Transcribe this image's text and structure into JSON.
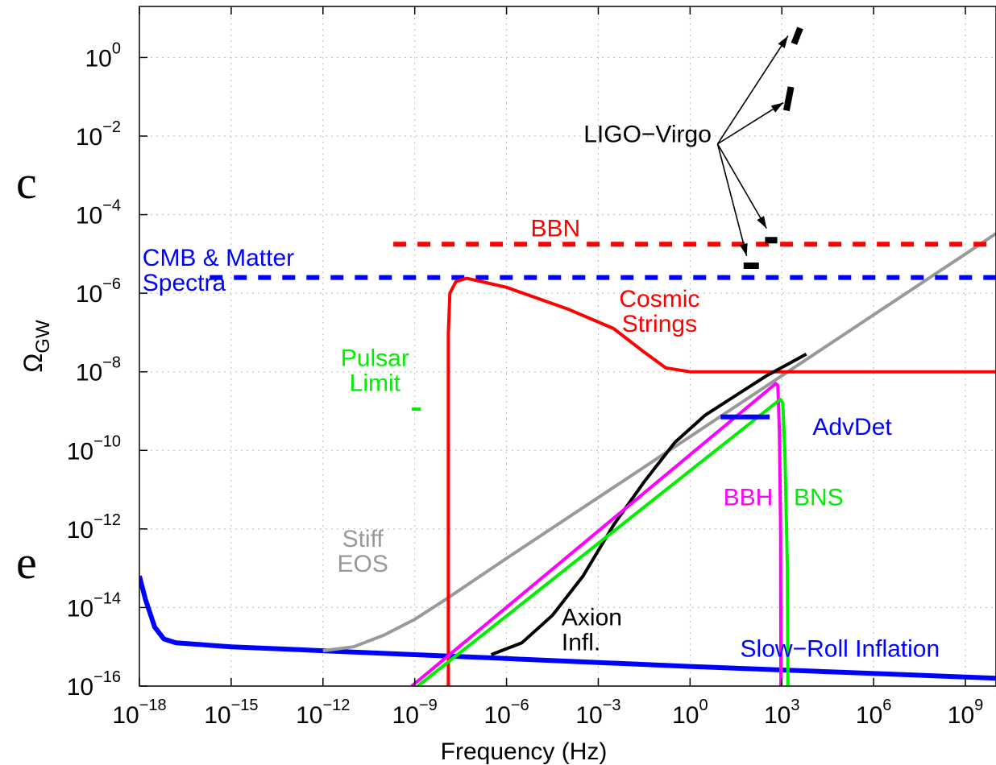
{
  "chart_data": {
    "type": "line",
    "xlabel": "Frequency (Hz)",
    "ylabel_main": "Ω",
    "ylabel_sub": "GW",
    "x_scale": "log",
    "y_scale": "log",
    "xlim_log10": [
      -18,
      10
    ],
    "ylim_log10": [
      -16,
      1.3
    ],
    "grid": "dotted",
    "x_tick_exponents": [
      -18,
      -15,
      -12,
      -9,
      -6,
      -3,
      0,
      3,
      6,
      9
    ],
    "y_tick_exponents": [
      -16,
      -14,
      -12,
      -10,
      -8,
      -6,
      -4,
      -2,
      0
    ],
    "tick_base": "10",
    "series": [
      {
        "key": "slow_roll",
        "color": "#0000ff",
        "width": 6,
        "dash": "",
        "points_log10": [
          [
            -18,
            -13.2
          ],
          [
            -17.8,
            -13.8
          ],
          [
            -17.5,
            -14.5
          ],
          [
            -17.2,
            -14.8
          ],
          [
            -16.8,
            -14.9
          ],
          [
            -15,
            -15.0
          ],
          [
            -12,
            -15.1
          ],
          [
            -9,
            -15.2
          ],
          [
            -6,
            -15.3
          ],
          [
            0,
            -15.5
          ],
          [
            5,
            -15.65
          ],
          [
            10,
            -15.8
          ]
        ]
      },
      {
        "key": "stiff_eos",
        "color": "#999999",
        "width": 4,
        "dash": "",
        "points_log10": [
          [
            -12,
            -15.1
          ],
          [
            -11,
            -15.0
          ],
          [
            -10,
            -14.7
          ],
          [
            -9,
            -14.3
          ],
          [
            -8,
            -13.8
          ],
          [
            -6,
            -12.75
          ],
          [
            -3,
            -11.2
          ],
          [
            0,
            -9.65
          ],
          [
            3,
            -8.1
          ],
          [
            6,
            -6.55
          ],
          [
            9,
            -5.0
          ],
          [
            10,
            -4.48
          ]
        ]
      },
      {
        "key": "bbn",
        "color": "#ff0000",
        "width": 6,
        "dash": "16,14",
        "points_log10": [
          [
            -9.7,
            -4.75
          ],
          [
            10,
            -4.75
          ]
        ]
      },
      {
        "key": "cmb",
        "color": "#0000ff",
        "width": 6,
        "dash": "16,14",
        "points_log10": [
          [
            -15.7,
            -5.6
          ],
          [
            10,
            -5.6
          ]
        ]
      },
      {
        "key": "cosmic_strings",
        "color": "#ff0000",
        "width": 4,
        "dash": "",
        "points_log10": [
          [
            -7.9,
            -16
          ],
          [
            -7.9,
            -7.0
          ],
          [
            -7.85,
            -6.0
          ],
          [
            -7.65,
            -5.7
          ],
          [
            -7.3,
            -5.62
          ],
          [
            -6,
            -5.85
          ],
          [
            -4,
            -6.4
          ],
          [
            -2.5,
            -6.9
          ],
          [
            -1.5,
            -7.5
          ],
          [
            -0.8,
            -7.9
          ],
          [
            0,
            -8.0
          ],
          [
            3,
            -8.0
          ],
          [
            10,
            -8.0
          ]
        ]
      },
      {
        "key": "axion",
        "color": "#000000",
        "width": 4,
        "dash": "",
        "points_log10": [
          [
            -6.5,
            -15.2
          ],
          [
            -5.5,
            -14.9
          ],
          [
            -4.5,
            -14.2
          ],
          [
            -3.5,
            -13.2
          ],
          [
            -2.5,
            -11.9
          ],
          [
            -1.5,
            -10.8
          ],
          [
            -0.5,
            -9.8
          ],
          [
            0.5,
            -9.1
          ],
          [
            1.5,
            -8.6
          ],
          [
            2.5,
            -8.1
          ],
          [
            3.8,
            -7.55
          ]
        ]
      },
      {
        "key": "bbh",
        "color": "#ff00ff",
        "width": 4,
        "dash": "",
        "points_log10": [
          [
            -9.1,
            -16
          ],
          [
            2.8,
            -8.3
          ],
          [
            2.87,
            -8.35
          ],
          [
            2.92,
            -9.5
          ],
          [
            2.96,
            -12
          ],
          [
            2.97,
            -16
          ]
        ]
      },
      {
        "key": "bns",
        "color": "#00ee00",
        "width": 4,
        "dash": "",
        "points_log10": [
          [
            -8.9,
            -16
          ],
          [
            2.95,
            -8.7
          ],
          [
            3.03,
            -8.8
          ],
          [
            3.1,
            -10
          ],
          [
            3.18,
            -13
          ],
          [
            3.2,
            -16
          ]
        ]
      },
      {
        "key": "advdet",
        "color": "#0000ff",
        "width": 6,
        "dash": "",
        "points_log10": [
          [
            1.0,
            -9.15
          ],
          [
            2.6,
            -9.15
          ]
        ]
      },
      {
        "key": "pulsar",
        "color": "#00ee00",
        "width": 4,
        "dash": "",
        "points_log10": [
          [
            -9.1,
            -8.95
          ],
          [
            -8.8,
            -8.95
          ]
        ]
      },
      {
        "key": "ligo1",
        "color": "#000000",
        "width": 8,
        "dash": "",
        "points_log10": [
          [
            3.4,
            0.35
          ],
          [
            3.6,
            0.75
          ]
        ]
      },
      {
        "key": "ligo2",
        "color": "#000000",
        "width": 8,
        "dash": "",
        "points_log10": [
          [
            3.15,
            -1.35
          ],
          [
            3.3,
            -0.75
          ]
        ]
      },
      {
        "key": "ligo3",
        "color": "#000000",
        "width": 8,
        "dash": "",
        "points_log10": [
          [
            2.45,
            -4.65
          ],
          [
            2.85,
            -4.65
          ]
        ]
      },
      {
        "key": "ligo4",
        "color": "#000000",
        "width": 8,
        "dash": "",
        "points_log10": [
          [
            1.75,
            -5.3
          ],
          [
            2.25,
            -5.3
          ]
        ]
      }
    ],
    "annotations": [
      {
        "lines": [
          "LIGO−Virgo"
        ],
        "color": "#000000",
        "at_log10": [
          0.7,
          -2.15
        ],
        "anchor": "end"
      },
      {
        "lines": [
          "BBN"
        ],
        "color": "#ff0000",
        "at_log10": [
          -4.4,
          -4.55
        ],
        "anchor": "middle"
      },
      {
        "lines": [
          "CMB & Matter",
          "Spectra"
        ],
        "color": "#0000ff",
        "at_log10": [
          -17.9,
          -5.3
        ],
        "anchor": "start"
      },
      {
        "lines": [
          "Cosmic",
          "Strings"
        ],
        "color": "#ff0000",
        "at_log10": [
          -1.0,
          -6.35
        ],
        "anchor": "middle"
      },
      {
        "lines": [
          "Pulsar",
          "Limit"
        ],
        "color": "#00ee00",
        "at_log10": [
          -10.3,
          -7.85
        ],
        "anchor": "middle"
      },
      {
        "lines": [
          "AdvDet"
        ],
        "color": "#0000ff",
        "at_log10": [
          5.3,
          -9.6
        ],
        "anchor": "middle"
      },
      {
        "lines": [
          "BBH"
        ],
        "color": "#ff00ff",
        "at_log10": [
          1.9,
          -11.4
        ],
        "anchor": "middle"
      },
      {
        "lines": [
          "BNS"
        ],
        "color": "#00ee00",
        "at_log10": [
          4.2,
          -11.4
        ],
        "anchor": "middle"
      },
      {
        "lines": [
          "Stiff",
          "EOS"
        ],
        "color": "#999999",
        "at_log10": [
          -10.7,
          -12.45
        ],
        "anchor": "middle"
      },
      {
        "lines": [
          "Axion",
          "Infl."
        ],
        "color": "#000000",
        "at_log10": [
          -4.2,
          -14.45
        ],
        "anchor": "start"
      },
      {
        "lines": [
          "Slow−Roll Inflation"
        ],
        "color": "#0000ff",
        "at_log10": [
          4.9,
          -15.25
        ],
        "anchor": "middle"
      }
    ],
    "arrows_log10": [
      [
        [
          0.9,
          -2.2
        ],
        [
          3.2,
          0.55
        ]
      ],
      [
        [
          0.9,
          -2.2
        ],
        [
          3.05,
          -1.15
        ]
      ],
      [
        [
          0.9,
          -2.2
        ],
        [
          2.5,
          -4.35
        ]
      ],
      [
        [
          0.9,
          -2.2
        ],
        [
          1.85,
          -5.05
        ]
      ]
    ]
  },
  "margin_text": [
    {
      "text": "c"
    },
    {
      "text": "e"
    }
  ]
}
